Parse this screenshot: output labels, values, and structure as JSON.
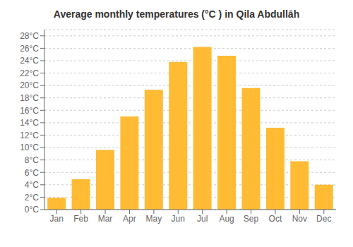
{
  "chart_data": {
    "type": "bar",
    "title": "Average monthly temperatures (°C ) in Qila Abdullāh",
    "categories": [
      "Jan",
      "Feb",
      "Mar",
      "Apr",
      "May",
      "Jun",
      "Jul",
      "Aug",
      "Sep",
      "Oct",
      "Nov",
      "Dec"
    ],
    "values": [
      1.9,
      4.9,
      9.6,
      15.0,
      19.3,
      23.8,
      26.2,
      24.8,
      19.6,
      13.2,
      7.8,
      4.0
    ],
    "color": "#FFBB33",
    "ylim": [
      0,
      29
    ],
    "yticks": [
      {
        "value": 0,
        "label": "0°C"
      },
      {
        "value": 2,
        "label": "2°C"
      },
      {
        "value": 4,
        "label": "4°C"
      },
      {
        "value": 6,
        "label": "6°C"
      },
      {
        "value": 8,
        "label": "8°C"
      },
      {
        "value": 10,
        "label": "10°C"
      },
      {
        "value": 12,
        "label": "12°C"
      },
      {
        "value": 14,
        "label": "14°C"
      },
      {
        "value": 16,
        "label": "16°C"
      },
      {
        "value": 18,
        "label": "18°C"
      },
      {
        "value": 20,
        "label": "20°C"
      },
      {
        "value": 22,
        "label": "22°C"
      },
      {
        "value": 24,
        "label": "24°C"
      },
      {
        "value": 26,
        "label": "26°C"
      },
      {
        "value": 28,
        "label": "28°C"
      }
    ],
    "grid": true
  }
}
